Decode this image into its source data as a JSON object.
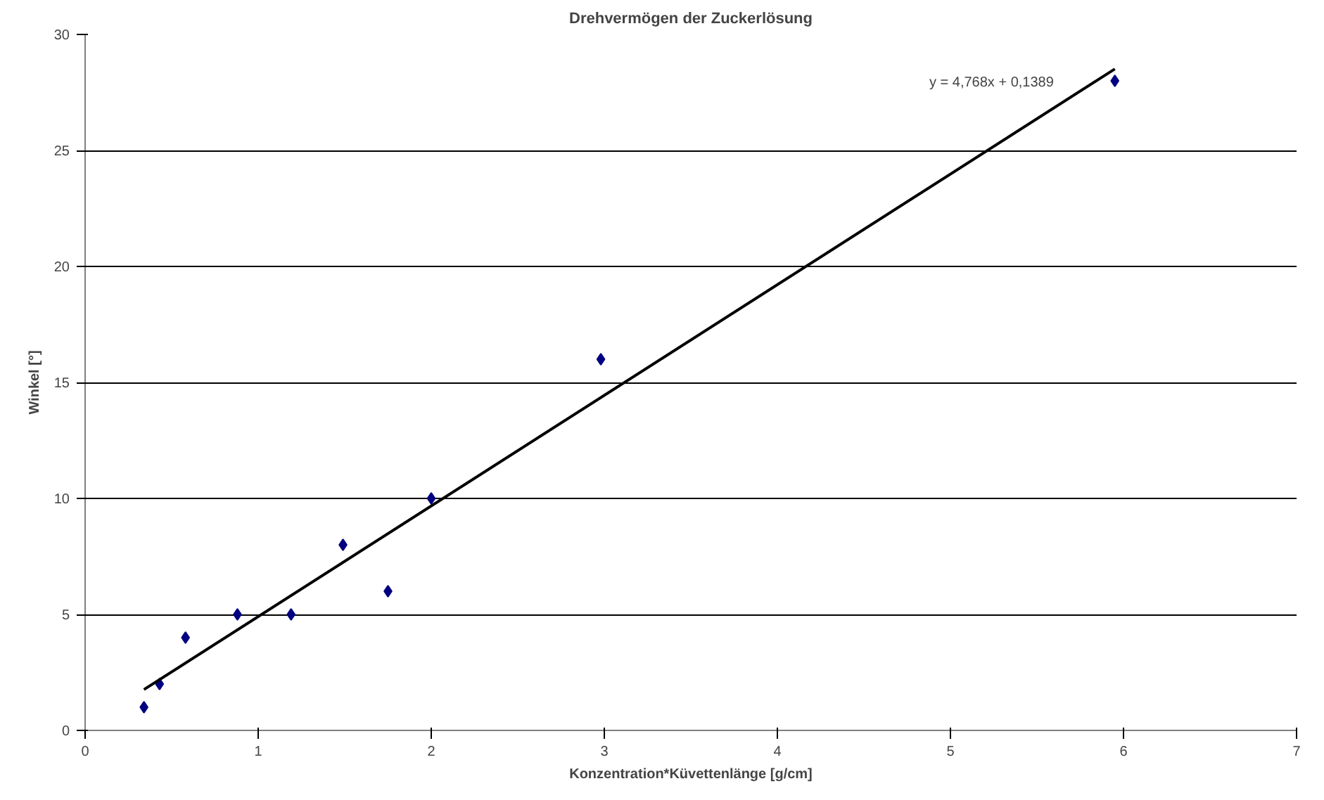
{
  "chart_data": {
    "type": "scatter",
    "title": "Drehvermögen der Zuckerlösung",
    "xlabel": "Konzentration*Küvettenlänge [g/cm]",
    "ylabel": "Winkel [°]",
    "series": [
      {
        "color": "#000080",
        "marker": "diamond",
        "x": [
          0.34,
          0.43,
          0.58,
          0.88,
          1.19,
          1.49,
          1.75,
          2.0,
          2.98,
          5.95
        ],
        "values": [
          1,
          2,
          4,
          5,
          5,
          8,
          6,
          10,
          16,
          28
        ]
      },
      {
        "type": "line",
        "color": "#000000",
        "x": [
          0.34,
          5.95
        ],
        "values": [
          1.76,
          28.51
        ]
      }
    ],
    "annotations": [
      "y = 4,768x + 0,1389"
    ],
    "xlim": [
      0,
      7
    ],
    "xticks": [
      0,
      1,
      2,
      3,
      4,
      5,
      6,
      7
    ],
    "ylim": [
      0,
      30
    ],
    "yticks": [
      0,
      5,
      10,
      15,
      20,
      25,
      30
    ],
    "grid": "y"
  }
}
